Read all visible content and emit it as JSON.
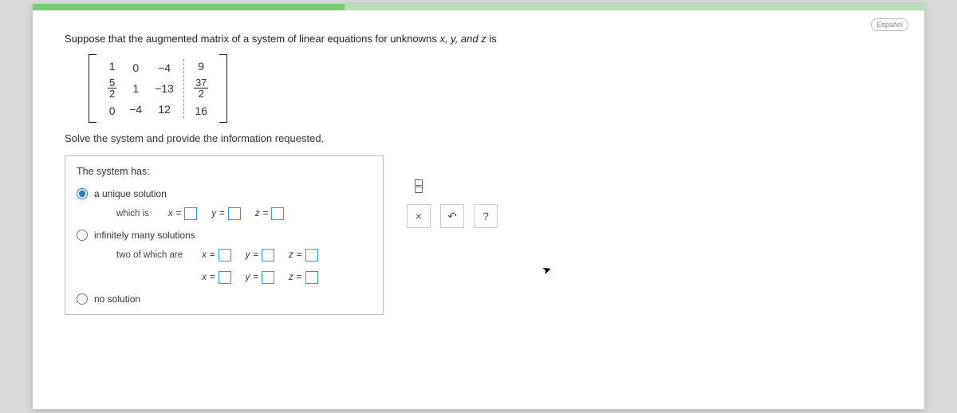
{
  "lang_button": "Español",
  "prompt_prefix": "Suppose that the augmented matrix of a system of linear equations for unknowns ",
  "prompt_vars": "x, y, and z",
  "prompt_suffix": " is",
  "matrix": {
    "rows": [
      {
        "c1": "1",
        "c2": "0",
        "c3": "−4",
        "aug": "9"
      },
      {
        "c1_frac": {
          "num": "5",
          "den": "2"
        },
        "c2": "1",
        "c3": "−13",
        "aug_frac": {
          "num": "37",
          "den": "2"
        }
      },
      {
        "c1": "0",
        "c2": "−4",
        "c3": "12",
        "aug": "16"
      }
    ]
  },
  "instruction": "Solve the system and provide the information requested.",
  "panel": {
    "title": "The system has:",
    "options": {
      "unique": {
        "label": "a unique solution",
        "sub_label": "which is",
        "selected": true
      },
      "infinite": {
        "label": "infinitely many solutions",
        "sub_label": "two of which are"
      },
      "none": {
        "label": "no solution"
      }
    },
    "eq_labels": {
      "x": "x",
      "y": "y",
      "z": "z",
      "eq": "="
    }
  },
  "tools": {
    "frac_tooltip": "fraction",
    "close": "×",
    "undo": "↶",
    "help": "?"
  },
  "colors": {
    "accent": "#2a9fd6",
    "green_bar_dark": "#7cc97c",
    "green_bar_light": "#b8e0b8",
    "background": "#d8dad8"
  }
}
